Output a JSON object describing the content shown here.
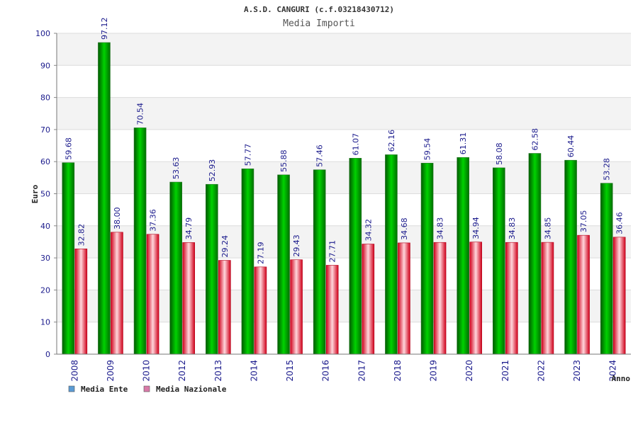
{
  "chart_data": {
    "type": "bar",
    "title": "A.S.D. CANGURI (c.f.03218430712)",
    "subtitle": "Media Importi",
    "xlabel": "Anno",
    "ylabel": "Euro",
    "ylim": [
      0,
      100
    ],
    "yticks": [
      0,
      10,
      20,
      30,
      40,
      50,
      60,
      70,
      80,
      90,
      100
    ],
    "grid": true,
    "legend_position": "bottom-left",
    "categories": [
      "2008",
      "2009",
      "2010",
      "2012",
      "2013",
      "2014",
      "2015",
      "2016",
      "2017",
      "2018",
      "2019",
      "2020",
      "2021",
      "2022",
      "2023",
      "2024"
    ],
    "series": [
      {
        "name": "Media Ente",
        "color": "#00b400",
        "legend_color": "#5b9bd5",
        "values": [
          59.68,
          97.12,
          70.54,
          53.63,
          52.93,
          57.77,
          55.88,
          57.46,
          61.07,
          62.16,
          59.54,
          61.31,
          58.08,
          62.58,
          60.44,
          53.28
        ],
        "labels": [
          "59.68",
          "97.12",
          "70.54",
          "53.63",
          "52.93",
          "57.77",
          "55.88",
          "57.46",
          "61.07",
          "62.16",
          "59.54",
          "61.31",
          "58.08",
          "62.58",
          "60.44",
          "53.28"
        ]
      },
      {
        "name": "Media Nazionale",
        "color": "#e8001c",
        "legend_color": "#d97aa8",
        "values": [
          32.82,
          38.0,
          37.36,
          34.79,
          29.24,
          27.19,
          29.43,
          27.71,
          34.32,
          34.68,
          34.83,
          34.94,
          34.83,
          34.85,
          37.05,
          36.46
        ],
        "labels": [
          "32.82",
          "38.00",
          "37.36",
          "34.79",
          "29.24",
          "27.19",
          "29.43",
          "27.71",
          "34.32",
          "34.68",
          "34.83",
          "34.94",
          "34.83",
          "34.85",
          "37.05",
          "36.46"
        ]
      }
    ]
  }
}
